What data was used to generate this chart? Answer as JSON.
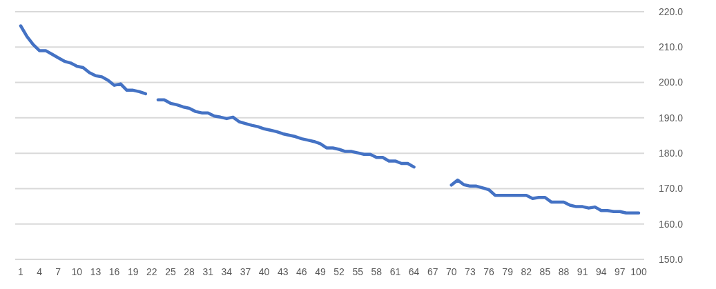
{
  "chart_data": {
    "type": "line",
    "categories": [
      "1",
      null,
      null,
      "4",
      null,
      null,
      "7",
      null,
      null,
      "10",
      null,
      null,
      "13",
      null,
      null,
      "16",
      null,
      null,
      "19",
      null,
      null,
      "22",
      null,
      null,
      "25",
      null,
      null,
      "28",
      null,
      null,
      "31",
      null,
      null,
      "34",
      null,
      null,
      "37",
      null,
      null,
      "40",
      null,
      null,
      "43",
      null,
      null,
      "46",
      null,
      null,
      "49",
      null,
      null,
      "52",
      null,
      null,
      "55",
      null,
      null,
      "58",
      null,
      null,
      "61",
      null,
      null,
      "64",
      null,
      null,
      "67",
      null,
      null,
      "70",
      null,
      null,
      "73",
      null,
      null,
      "76",
      null,
      null,
      "79",
      null,
      null,
      "82",
      null,
      null,
      "85",
      null,
      null,
      "88",
      null,
      null,
      "91",
      null,
      null,
      "94",
      null,
      null,
      "97",
      null,
      null,
      "100"
    ],
    "series": [
      {
        "color": "#4472c4",
        "values": [
          216,
          213,
          210.7,
          209,
          209,
          208,
          207,
          206,
          205.5,
          204.6,
          204.2,
          202.8,
          201.9,
          201.6,
          200.6,
          199.2,
          199.6,
          197.8,
          197.8,
          197.4,
          196.8,
          null,
          195.1,
          195.1,
          194.1,
          193.7,
          193.1,
          192.7,
          191.8,
          191.4,
          191.4,
          190.5,
          190.2,
          189.8,
          190.2,
          188.9,
          188.4,
          187.9,
          187.5,
          186.9,
          186.5,
          186.1,
          185.5,
          185.1,
          184.7,
          184.1,
          183.7,
          183.3,
          182.7,
          181.5,
          181.5,
          181.1,
          180.5,
          180.5,
          180.1,
          179.7,
          179.7,
          178.8,
          178.8,
          177.8,
          177.8,
          177.1,
          177.1,
          176.1,
          null,
          null,
          null,
          null,
          null,
          171,
          172.4,
          171.1,
          170.7,
          170.7,
          170.2,
          169.7,
          168.1,
          168.1,
          168.1,
          168.1,
          168.1,
          168.1,
          167.2,
          167.5,
          167.5,
          166.2,
          166.2,
          166.2,
          165.3,
          164.9,
          164.9,
          164.5,
          164.8,
          163.8,
          163.8,
          163.5,
          163.5,
          163.1,
          163.1,
          163.1
        ]
      }
    ],
    "ylim": [
      150,
      220
    ],
    "yticks": [
      {
        "value": 150,
        "label": "150.0"
      },
      {
        "value": 160,
        "label": "160.0"
      },
      {
        "value": 170,
        "label": "170.0"
      },
      {
        "value": 180,
        "label": "180.0"
      },
      {
        "value": 190,
        "label": "190.0"
      },
      {
        "value": 200,
        "label": "200.0"
      },
      {
        "value": 210,
        "label": "210.0"
      },
      {
        "value": 220,
        "label": "220.0"
      }
    ],
    "grid": "y",
    "marker": "none",
    "line_style": "solid"
  }
}
